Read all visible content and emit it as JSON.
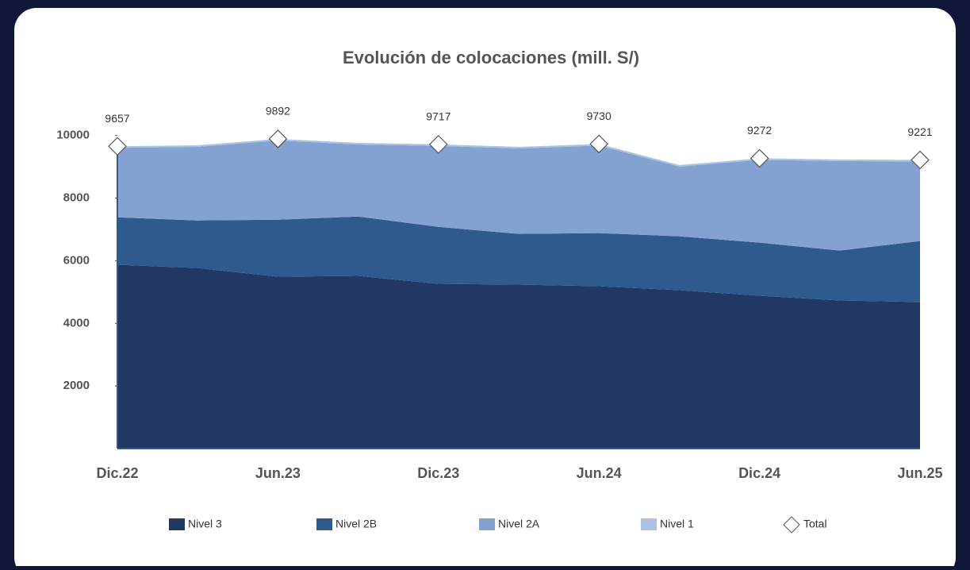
{
  "chart_data": {
    "type": "stacked_area",
    "title": "Evolución de colocaciones  (mill. S/)",
    "categories": [
      "Dic.22",
      null,
      "Jun.23",
      null,
      "Dic.23",
      null,
      "Jun.24",
      null,
      "Dic.24",
      null,
      "Jun.25"
    ],
    "series": [
      {
        "name": "Nivel 3",
        "color": "#213864",
        "values": [
          5870,
          5768,
          5490,
          5515,
          5262,
          5237,
          5187,
          5060,
          4883,
          4731,
          4681
        ]
      },
      {
        "name": "Nivel 2B",
        "color": "#2e5a8e",
        "values": [
          1518,
          1518,
          1822,
          1898,
          1822,
          1619,
          1695,
          1720,
          1695,
          1594,
          1948
        ]
      },
      {
        "name": "Nivel 2A",
        "color": "#84a2d1",
        "values": [
          2219,
          2353,
          2530,
          2302,
          2583,
          2732,
          2798,
          2226,
          2644,
          2859,
          2542
        ]
      },
      {
        "name": "Nivel 1",
        "color": "#aac2e3",
        "values": [
          50,
          50,
          50,
          50,
          50,
          50,
          50,
          50,
          50,
          50,
          50
        ]
      }
    ],
    "total": {
      "name": "Total",
      "values": [
        9657,
        null,
        9892,
        null,
        9717,
        null,
        9730,
        null,
        9272,
        null,
        9221
      ]
    },
    "ylim": [
      0,
      10500
    ],
    "yticks": [
      2000,
      4000,
      6000,
      8000,
      10000
    ],
    "grid": false
  }
}
